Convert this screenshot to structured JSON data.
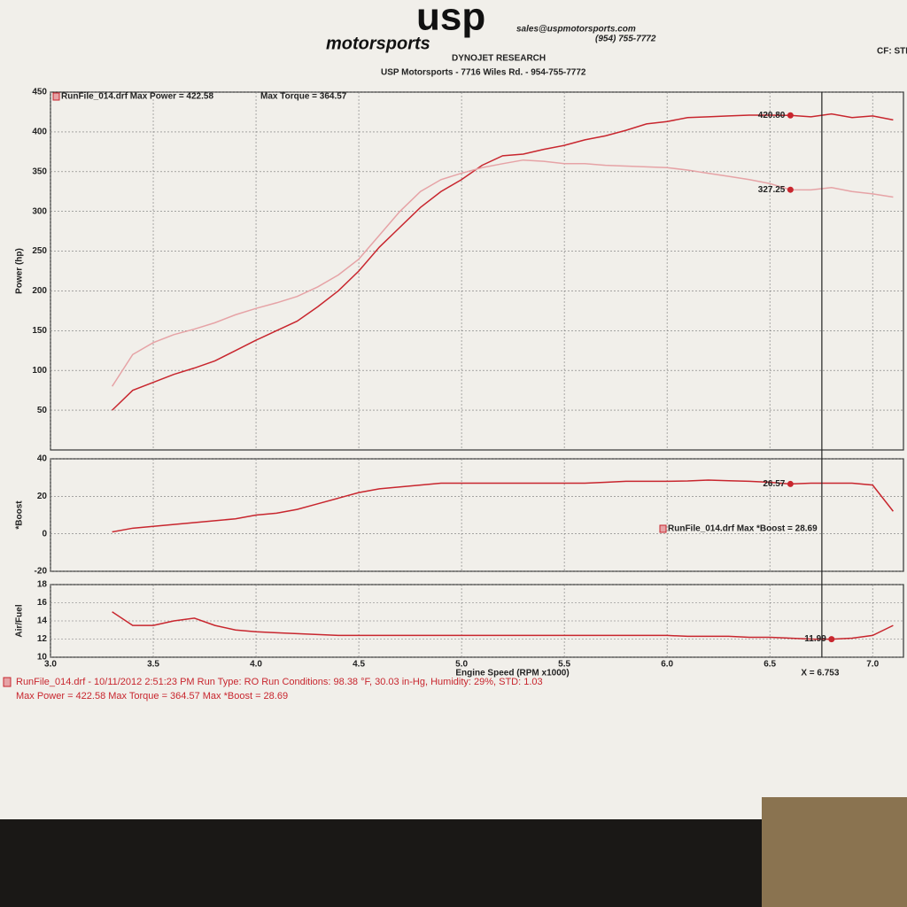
{
  "header": {
    "logo": "usp",
    "logo_sub": "motorsports",
    "email": "sales@uspmotorsports.com",
    "phone": "(954) 755-7772",
    "company": "DYNOJET RESEARCH",
    "address": "USP Motorsports - 7716 Wiles Rd. - 954-755-7772",
    "corner": "CF: STD"
  },
  "footer": {
    "lines": [
      "RunFile_014.drf - 10/11/2012 2:51:23 PM  Run Type: RO  Run Conditions: 98.38 °F, 30.03 in-Hg, Humidity: 29%, STD: 1.03",
      "Max Power = 422.58  Max Torque = 364.57  Max *Boost = 28.69"
    ]
  },
  "chart_data": [
    {
      "type": "line",
      "ylabel": "Power (hp)",
      "xlim": [
        3.0,
        7.15
      ],
      "ylim": [
        0,
        450
      ],
      "yticks": [
        50,
        100,
        150,
        200,
        250,
        300,
        350,
        400,
        450
      ],
      "grid": true,
      "legend_text": [
        "RunFile_014.drf Max Power = 422.58",
        "Max Torque = 364.57"
      ],
      "x": [
        3.3,
        3.4,
        3.5,
        3.6,
        3.7,
        3.8,
        3.9,
        4.0,
        4.1,
        4.2,
        4.3,
        4.4,
        4.5,
        4.6,
        4.7,
        4.8,
        4.9,
        5.0,
        5.1,
        5.2,
        5.3,
        5.4,
        5.5,
        5.6,
        5.7,
        5.8,
        5.9,
        6.0,
        6.1,
        6.2,
        6.3,
        6.4,
        6.5,
        6.6,
        6.7,
        6.8,
        6.9,
        7.0,
        7.1
      ],
      "series": [
        {
          "color": "#c8262e",
          "values": [
            50,
            75,
            85,
            95,
            103,
            112,
            125,
            138,
            150,
            162,
            180,
            200,
            225,
            255,
            280,
            305,
            325,
            340,
            358,
            370,
            372,
            378,
            383,
            390,
            395,
            402,
            410,
            413,
            418,
            419,
            420,
            421,
            421,
            420.8,
            419,
            422.58,
            418,
            420,
            415
          ]
        },
        {
          "color": "#e6a3a6",
          "values": [
            80,
            120,
            135,
            145,
            152,
            160,
            170,
            178,
            185,
            193,
            205,
            220,
            240,
            270,
            300,
            325,
            340,
            348,
            355,
            360,
            364.57,
            363,
            360,
            360,
            358,
            357,
            356,
            355,
            352,
            348,
            344,
            340,
            335,
            327.25,
            327,
            330,
            325,
            322,
            318
          ]
        }
      ],
      "annotations": [
        {
          "x": 6.6,
          "y": 420.8,
          "label": "420.80"
        },
        {
          "x": 6.6,
          "y": 327.25,
          "label": "327.25"
        }
      ]
    },
    {
      "type": "line",
      "ylabel": "*Boost",
      "xlim": [
        3.0,
        7.15
      ],
      "ylim": [
        -20,
        40
      ],
      "yticks": [
        -20,
        0,
        20,
        40
      ],
      "grid": true,
      "legend_text": [
        "RunFile_014.drf Max *Boost = 28.69"
      ],
      "x": [
        3.3,
        3.4,
        3.5,
        3.6,
        3.7,
        3.8,
        3.9,
        4.0,
        4.1,
        4.2,
        4.3,
        4.4,
        4.5,
        4.6,
        4.7,
        4.8,
        4.9,
        5.0,
        5.1,
        5.2,
        5.3,
        5.4,
        5.5,
        5.6,
        5.7,
        5.8,
        5.9,
        6.0,
        6.1,
        6.2,
        6.3,
        6.4,
        6.5,
        6.6,
        6.7,
        6.8,
        6.9,
        7.0,
        7.1
      ],
      "series": [
        {
          "color": "#c8262e",
          "values": [
            1,
            3,
            4,
            5,
            6,
            7,
            8,
            10,
            11,
            13,
            16,
            19,
            22,
            24,
            25,
            26,
            27,
            27,
            27,
            27,
            27,
            27,
            27,
            27,
            27.5,
            28,
            28,
            28,
            28.2,
            28.69,
            28.3,
            28,
            27.5,
            26.57,
            27,
            27,
            27,
            26,
            12
          ]
        }
      ],
      "annotations": [
        {
          "x": 6.6,
          "y": 26.57,
          "label": "26.57"
        }
      ]
    },
    {
      "type": "line",
      "ylabel": "Air/Fuel",
      "xlabel": "Engine Speed (RPM x1000)",
      "xlim": [
        3.0,
        7.15
      ],
      "ylim": [
        10,
        18
      ],
      "yticks": [
        10,
        12,
        14,
        16,
        18
      ],
      "grid": true,
      "xticks": [
        {
          "value": 3,
          "label": "3.0"
        },
        3.5,
        {
          "value": 4,
          "label": "4.0"
        },
        4.5,
        {
          "value": 5,
          "label": "5.0"
        },
        5.5,
        {
          "value": 6,
          "label": "6.0"
        },
        6.5,
        {
          "value": 7,
          "label": "7.0"
        }
      ],
      "cursor": {
        "x": 6.753,
        "label": "X = 6.753"
      },
      "x": [
        3.3,
        3.4,
        3.5,
        3.6,
        3.7,
        3.8,
        3.9,
        4.0,
        4.1,
        4.2,
        4.3,
        4.4,
        4.5,
        4.6,
        4.7,
        4.8,
        4.9,
        5.0,
        5.1,
        5.2,
        5.3,
        5.4,
        5.5,
        5.6,
        5.7,
        5.8,
        5.9,
        6.0,
        6.1,
        6.2,
        6.3,
        6.4,
        6.5,
        6.6,
        6.7,
        6.8,
        6.9,
        7.0,
        7.1
      ],
      "series": [
        {
          "color": "#c8262e",
          "values": [
            15,
            13.5,
            13.5,
            14,
            14.3,
            13.5,
            13,
            12.8,
            12.7,
            12.6,
            12.5,
            12.4,
            12.4,
            12.4,
            12.4,
            12.4,
            12.4,
            12.4,
            12.4,
            12.4,
            12.4,
            12.4,
            12.4,
            12.4,
            12.4,
            12.4,
            12.4,
            12.4,
            12.3,
            12.3,
            12.3,
            12.2,
            12.2,
            12.1,
            12.0,
            11.99,
            12.1,
            12.4,
            13.5
          ]
        }
      ],
      "annotations": [
        {
          "x": 6.8,
          "y": 11.99,
          "label": "11.99"
        }
      ]
    }
  ]
}
